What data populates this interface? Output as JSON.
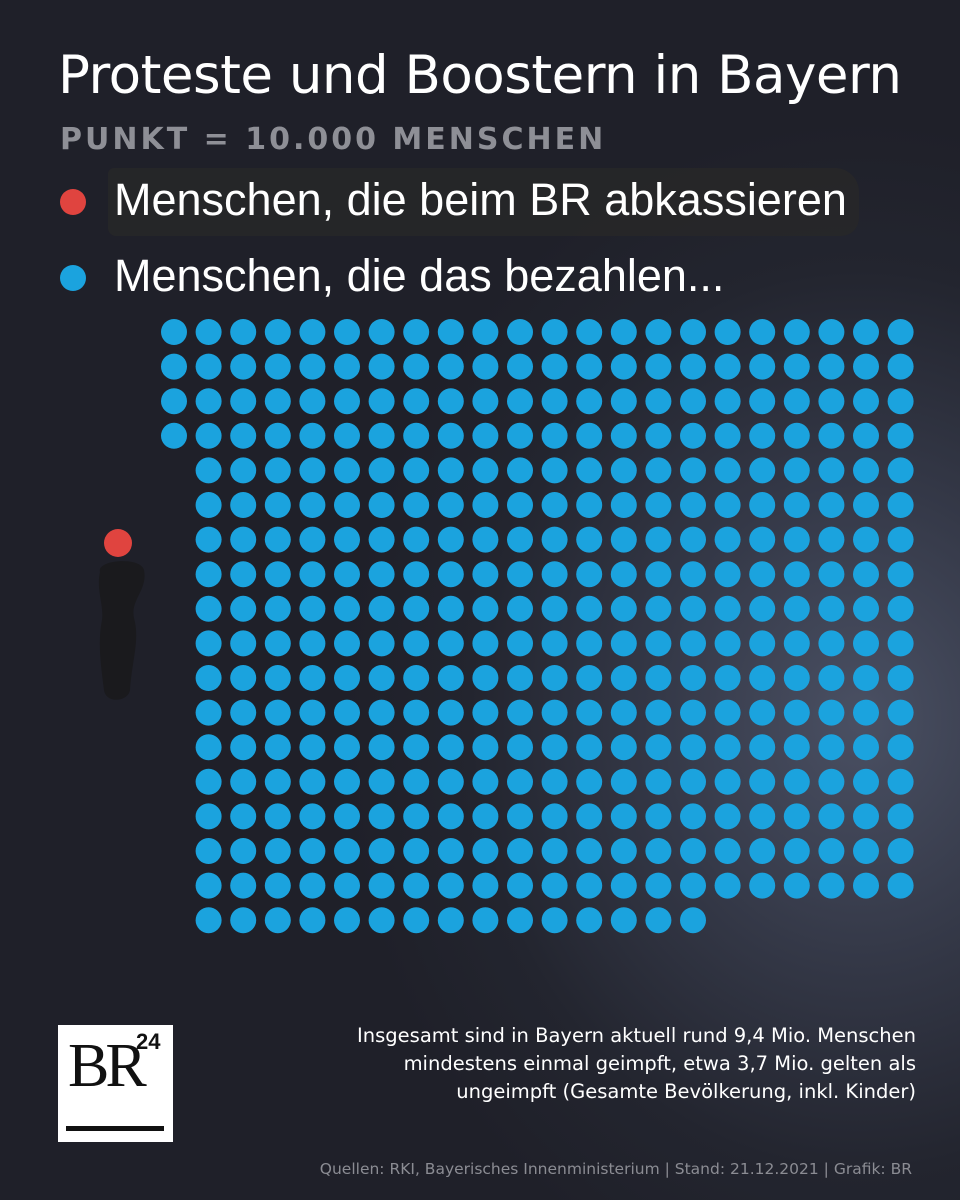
{
  "header": {
    "title": "Proteste und Boostern in Bayern",
    "subtitle": "PUNKT = 10.000 MENSCHEN"
  },
  "legend": [
    {
      "label": "Menschen, die beim BR abkassieren",
      "color": "#e0443f"
    },
    {
      "label": "Menschen, die das bezahlen...",
      "color": "#1ba3de"
    }
  ],
  "chart_data": {
    "type": "dot-matrix",
    "title": "Proteste und Boostern in Bayern",
    "unit": "PUNKT = 10.000 MENSCHEN",
    "series": [
      {
        "name": "Menschen, die beim BR abkassieren",
        "color": "#e0443f",
        "dots": 1
      },
      {
        "name": "Menschen, die das bezahlen...",
        "color": "#1ba3de",
        "dots": 376,
        "grid_rows": 20,
        "grid_cols": 22,
        "first_full_rows": 4,
        "remaining_rows_cols": 21
      }
    ]
  },
  "note": {
    "lines": [
      "Insgesamt sind in Bayern aktuell rund 9,4 Mio. Menschen",
      "mindestens einmal geimpft, etwa 3,7 Mio. gelten als",
      "ungeimpft (Gesamte Bevölkerung, inkl. Kinder)"
    ]
  },
  "logo": {
    "text": "BR",
    "superscript": "24"
  },
  "source": "Quellen: RKI, Bayerisches Innenministerium | Stand: 21.12.2021 | Grafik: BR",
  "colors": {
    "background": "#2a2c37",
    "red_dot": "#e0443f",
    "blue_dot": "#1ba3de",
    "subtitle": "#8e8f96",
    "source": "#8b8c93"
  }
}
